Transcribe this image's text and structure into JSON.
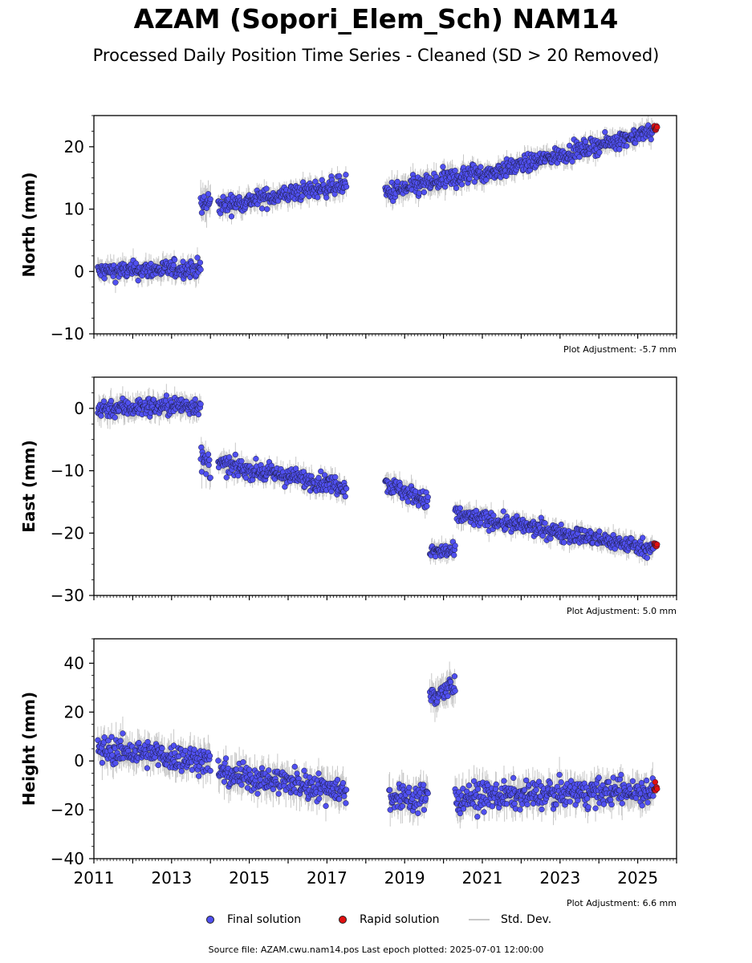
{
  "title": "AZAM (Sopori_Elem_Sch) NAM14",
  "subtitle": "Processed Daily Position Time Series - Cleaned (SD > 20 Removed)",
  "colors": {
    "final": "#5050f0",
    "rapid": "#e01010",
    "stddev": "#c8c8c8",
    "edge": "#1a1a3a"
  },
  "legend": {
    "final": "Final solution",
    "rapid": "Rapid solution",
    "stddev": "Std. Dev."
  },
  "source": "Source file: AZAM.cwu.nam14.pos  Last epoch plotted: 2025-07-01 12:00:00",
  "chart_data": [
    {
      "type": "scatter",
      "ylabel": "North (mm)",
      "note": "Plot Adjustment: -5.7 mm",
      "ylim": [
        -10,
        25
      ],
      "yticks": [
        "−10",
        "0",
        "10",
        "20"
      ],
      "ytick_values": [
        -10,
        0,
        10,
        20
      ],
      "xlim": [
        2011,
        2026
      ],
      "final_segments": [
        {
          "from": 2011.1,
          "to": 2013.75,
          "start": 0.0,
          "end": 0.5,
          "spread": 1.3
        },
        {
          "from": 2013.75,
          "to": 2014.0,
          "start": 10.5,
          "end": 11.0,
          "spread": 2.2
        },
        {
          "from": 2014.2,
          "to": 2017.5,
          "start": 10.5,
          "end": 14.0,
          "spread": 1.3
        },
        {
          "from": 2018.5,
          "to": 2021.0,
          "start": 12.5,
          "end": 16.0,
          "spread": 1.5
        },
        {
          "from": 2021.0,
          "to": 2025.4,
          "start": 15.5,
          "end": 22.5,
          "spread": 1.2
        }
      ],
      "rapid": {
        "from": 2025.42,
        "to": 2025.5,
        "value": 23.0,
        "spread": 0.6
      }
    },
    {
      "type": "scatter",
      "ylabel": "East (mm)",
      "note": "Plot Adjustment: 5.0 mm",
      "ylim": [
        -30,
        5
      ],
      "yticks": [
        "−30",
        "−20",
        "−10",
        "0"
      ],
      "ytick_values": [
        -30,
        -20,
        -10,
        0
      ],
      "xlim": [
        2011,
        2026
      ],
      "final_segments": [
        {
          "from": 2011.1,
          "to": 2013.75,
          "start": 0.0,
          "end": 0.5,
          "spread": 1.4
        },
        {
          "from": 2013.75,
          "to": 2014.0,
          "start": -8.5,
          "end": -9.0,
          "spread": 2.0
        },
        {
          "from": 2014.2,
          "to": 2017.5,
          "start": -9.0,
          "end": -12.5,
          "spread": 1.3
        },
        {
          "from": 2018.5,
          "to": 2019.6,
          "start": -12.0,
          "end": -15.0,
          "spread": 1.3
        },
        {
          "from": 2019.65,
          "to": 2020.3,
          "start": -23.0,
          "end": -23.0,
          "spread": 1.2
        },
        {
          "from": 2020.3,
          "to": 2025.4,
          "start": -17.0,
          "end": -22.5,
          "spread": 1.2
        }
      ],
      "rapid": {
        "from": 2025.42,
        "to": 2025.5,
        "value": -22.0,
        "spread": 0.6
      }
    },
    {
      "type": "scatter",
      "ylabel": "Height (mm)",
      "note": "Plot Adjustment: 6.6 mm",
      "ylim": [
        -40,
        50
      ],
      "yticks": [
        "−40",
        "−20",
        "0",
        "20",
        "40"
      ],
      "ytick_values": [
        -40,
        -20,
        0,
        20,
        40
      ],
      "xlim": [
        2011,
        2026
      ],
      "xticks": [
        "2011",
        "2013",
        "2015",
        "2017",
        "2019",
        "2021",
        "2023",
        "2025"
      ],
      "xtick_values": [
        2011,
        2013,
        2015,
        2017,
        2019,
        2021,
        2023,
        2025
      ],
      "final_segments": [
        {
          "from": 2011.1,
          "to": 2014.0,
          "start": 5.0,
          "end": 0.0,
          "spread": 5.0
        },
        {
          "from": 2014.2,
          "to": 2017.5,
          "start": -5.0,
          "end": -12.0,
          "spread": 5.0
        },
        {
          "from": 2018.6,
          "to": 2019.6,
          "start": -15.0,
          "end": -15.0,
          "spread": 5.0
        },
        {
          "from": 2019.65,
          "to": 2020.3,
          "start": 27.0,
          "end": 30.0,
          "spread": 5.0
        },
        {
          "from": 2020.3,
          "to": 2025.4,
          "start": -15.0,
          "end": -12.0,
          "spread": 5.0
        }
      ],
      "rapid": {
        "from": 2025.42,
        "to": 2025.5,
        "value": -11.0,
        "spread": 2.0
      }
    }
  ]
}
